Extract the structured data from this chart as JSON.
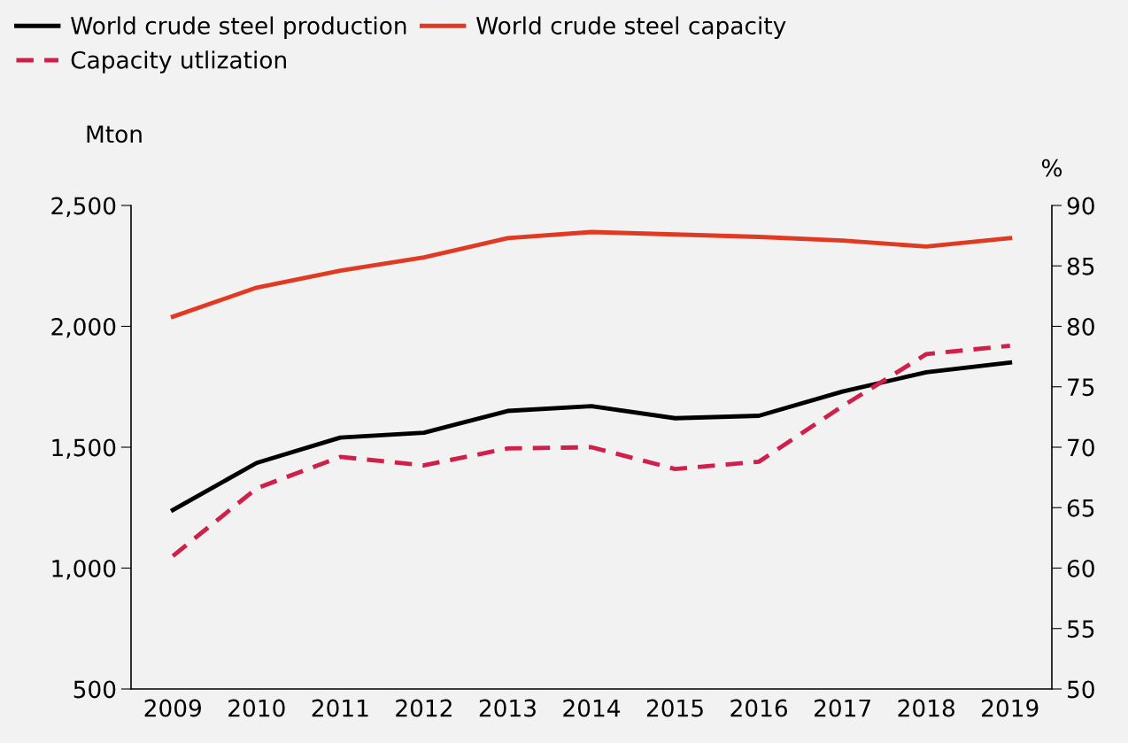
{
  "chart_data": {
    "type": "line",
    "categories": [
      "2009",
      "2010",
      "2011",
      "2012",
      "2013",
      "2014",
      "2015",
      "2016",
      "2017",
      "2018",
      "2019"
    ],
    "series": [
      {
        "name": "World crude steel production",
        "color": "#000000",
        "line_style": "solid",
        "values": [
          1240,
          1435,
          1540,
          1560,
          1650,
          1670,
          1620,
          1630,
          1730,
          1810,
          1850
        ]
      },
      {
        "name": "World crude steel capacity",
        "color": "#e03a22",
        "line_style": "solid",
        "values": [
          2040,
          2160,
          2230,
          2285,
          2365,
          2390,
          2380,
          2370,
          2355,
          2330,
          2365
        ]
      },
      {
        "name": "Capacity utlization",
        "color": "#d0204a",
        "line_style": "dashed",
        "axis": "y2",
        "values": [
          61.0,
          66.6,
          69.2,
          68.5,
          69.9,
          70.0,
          68.2,
          68.8,
          73.4,
          77.7,
          78.4
        ]
      }
    ],
    "ylabel": "Mton",
    "y2label": "%",
    "ylim": [
      500,
      2500
    ],
    "yticks": [
      {
        "value": 500,
        "label": "500"
      },
      {
        "value": 1000,
        "label": "1,000"
      },
      {
        "value": 1500,
        "label": "1,500"
      },
      {
        "value": 2000,
        "label": "2,000"
      },
      {
        "value": 2500,
        "label": "2,500"
      }
    ],
    "y2lim": [
      50,
      90
    ],
    "y2ticks": [
      50,
      55,
      60,
      65,
      70,
      75,
      80,
      85,
      90
    ],
    "grid": false,
    "legend": "top",
    "marker": "none"
  }
}
